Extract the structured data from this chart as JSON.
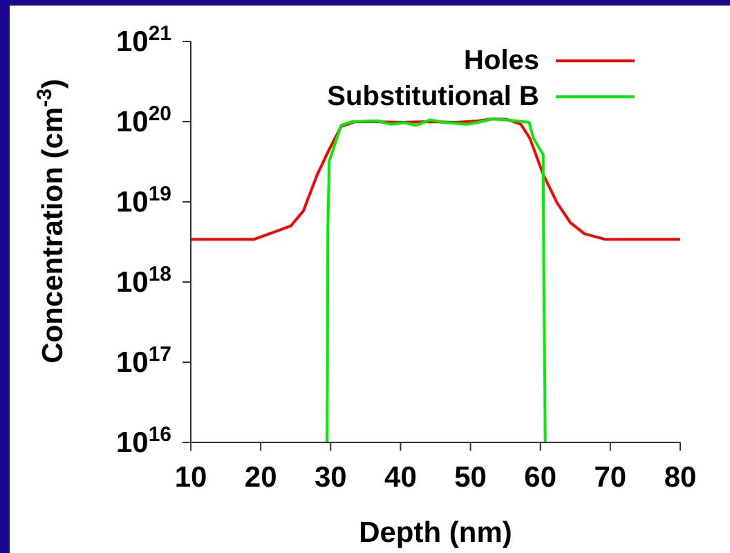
{
  "chart_data": {
    "type": "line",
    "xlabel": "Depth (nm)",
    "ylabel": "Concentration (cm$^{-3}$)",
    "log": "y",
    "xlim": [
      10,
      80
    ],
    "xticks": [
      10,
      20,
      30,
      40,
      50,
      60,
      70,
      80
    ],
    "ylim": [
      1e+16,
      1e+21
    ],
    "yticks": [
      {
        "value": 1e+16,
        "label": "10$^{16}$"
      },
      {
        "value": 1e+17,
        "label": "10$^{17}$"
      },
      {
        "value": 1e+18,
        "label": "10$^{18}$"
      },
      {
        "value": 1e+19,
        "label": "10$^{19}$"
      },
      {
        "value": 1e+20,
        "label": "10$^{20}$"
      },
      {
        "value": 1e+21,
        "label": "10$^{21}$"
      }
    ],
    "grid": false,
    "legend": "top right",
    "marker": "none",
    "line_style": "solid",
    "series": [
      {
        "name": "Holes",
        "color": "#ff0000",
        "x": [
          10,
          19,
          21.6,
          24.3,
          26.1,
          28.1,
          29.8,
          31.5,
          33.5,
          36,
          40,
          44,
          48,
          51,
          53,
          55.2,
          57.2,
          58.5,
          60.4,
          62.4,
          64.3,
          66.3,
          69.3,
          80
        ],
        "values": [
          3.4e+18,
          3.4e+18,
          4.1e+18,
          5e+18,
          7.7e+18,
          2.2e+19,
          4.5e+19,
          8.7e+19,
          1e+20,
          1e+20,
          9.8e+19,
          1e+20,
          9.8e+19,
          1.02e+20,
          1.08e+20,
          1.07e+20,
          9.3e+19,
          6.2e+19,
          2.2e+19,
          9.7e+18,
          5.5e+18,
          4e+18,
          3.4e+18,
          3.4e+18
        ]
      },
      {
        "name": "Substitutional B",
        "color": "#00ee00",
        "x": [
          29.5,
          29.55,
          29.6,
          29.8,
          31.5,
          33.1,
          36.7,
          38.6,
          40.6,
          42.2,
          44.2,
          46.2,
          49.5,
          51.1,
          53.1,
          55.1,
          58.4,
          59,
          60.4,
          60.45,
          60.7
        ],
        "values": [
          1e+16,
          8.3e+16,
          4.4e+18,
          3.2e+19,
          9e+19,
          1e+20,
          1.02e+20,
          9.3e+19,
          9.7e+19,
          9e+19,
          1.05e+20,
          9.8e+19,
          9.3e+19,
          9.8e+19,
          1.08e+20,
          1.05e+20,
          9.8e+19,
          6.2e+19,
          3.9e+19,
          4.4e+18,
          1e+16
        ]
      }
    ]
  }
}
